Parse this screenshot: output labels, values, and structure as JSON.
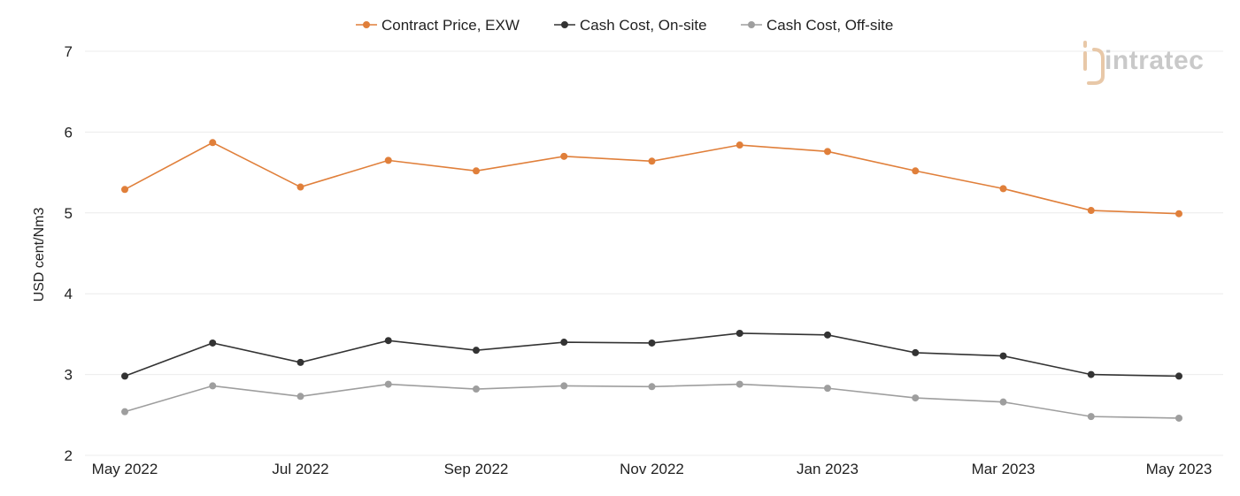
{
  "chart_data": {
    "type": "line",
    "title": "",
    "xlabel": "",
    "ylabel": "USD cent/Nm3",
    "ylim": [
      2,
      7
    ],
    "yticks": [
      2,
      3,
      4,
      5,
      6,
      7
    ],
    "grid": true,
    "legend_position": "top-center",
    "categories": [
      "May 2022",
      "Jun 2022",
      "Jul 2022",
      "Aug 2022",
      "Sep 2022",
      "Oct 2022",
      "Nov 2022",
      "Dec 2022",
      "Jan 2023",
      "Feb 2023",
      "Mar 2023",
      "Apr 2023",
      "May 2023"
    ],
    "tick_labels": [
      "May 2022",
      "",
      "Jul 2022",
      "",
      "Sep 2022",
      "",
      "Nov 2022",
      "",
      "Jan 2023",
      "",
      "Mar 2023",
      "",
      "May 2023"
    ],
    "series": [
      {
        "name": "Contract Price, EXW",
        "color": "#e07f3a",
        "values": [
          5.29,
          5.87,
          5.32,
          5.65,
          5.52,
          5.7,
          5.64,
          5.84,
          5.76,
          5.52,
          5.3,
          5.03,
          4.99
        ]
      },
      {
        "name": "Cash Cost, On-site",
        "color": "#333333",
        "values": [
          2.98,
          3.39,
          3.15,
          3.42,
          3.3,
          3.4,
          3.39,
          3.51,
          3.49,
          3.27,
          3.23,
          3.0,
          2.98
        ]
      },
      {
        "name": "Cash Cost, Off-site",
        "color": "#9e9e9e",
        "values": [
          2.54,
          2.86,
          2.73,
          2.88,
          2.82,
          2.86,
          2.85,
          2.88,
          2.83,
          2.71,
          2.66,
          2.48,
          2.46
        ]
      }
    ]
  },
  "watermark": {
    "text": "intratec",
    "colors": {
      "text": "#c9c9c9",
      "accent": "#e8c8a8"
    }
  }
}
